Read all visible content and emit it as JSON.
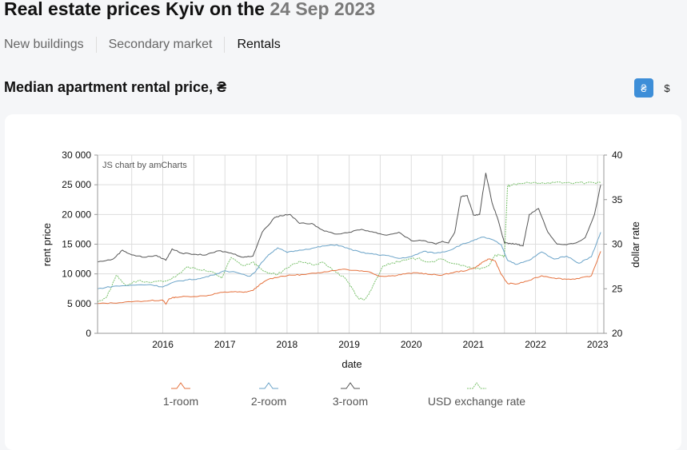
{
  "header": {
    "title_prefix": "Real estate prices Kyiv on the",
    "title_date": "24 Sep 2023"
  },
  "tabs": [
    {
      "label": "New buildings",
      "active": false
    },
    {
      "label": "Secondary market",
      "active": false
    },
    {
      "label": "Rentals",
      "active": true
    }
  ],
  "section": {
    "title": "Median apartment rental price, ₴"
  },
  "currency_toggle": {
    "uah_label": "₴",
    "usd_label": "$",
    "selected": "uah"
  },
  "colors": {
    "one_room": "#e5723e",
    "two_room": "#6aa3c8",
    "three_room": "#555555",
    "usd_rate": "#7cc26e",
    "grid": "#dddddd",
    "accent": "#3d8ed8"
  },
  "chart_data": {
    "type": "line",
    "watermark": "JS chart by amCharts",
    "xlabel": "date",
    "ylabel": "rent price",
    "y2label": "dollar rate",
    "xlim": [
      2015.45,
      2023.6
    ],
    "ylim": [
      0,
      30000
    ],
    "y2lim": [
      20,
      40
    ],
    "x_ticks": [
      2016,
      2017,
      2018,
      2019,
      2020,
      2021,
      2022,
      2023
    ],
    "y_ticks": [
      0,
      5000,
      10000,
      15000,
      20000,
      25000,
      30000
    ],
    "y_tick_labels": [
      "0",
      "5 000",
      "10 000",
      "15 000",
      "20 000",
      "25 000",
      "30 000"
    ],
    "y2_ticks": [
      20,
      25,
      30,
      35,
      40
    ],
    "grid": true,
    "legend_position": "bottom",
    "series": [
      {
        "name": "1-room",
        "axis": "left",
        "x": [
          2015.45,
          2015.7,
          2016.0,
          2016.3,
          2016.5,
          2016.55,
          2016.6,
          2016.7,
          2016.9,
          2017.2,
          2017.4,
          2017.6,
          2017.8,
          2017.95,
          2018.05,
          2018.2,
          2018.4,
          2018.6,
          2018.8,
          2019.0,
          2019.2,
          2019.4,
          2019.6,
          2019.8,
          2020.0,
          2020.2,
          2020.4,
          2020.6,
          2020.8,
          2021.0,
          2021.2,
          2021.4,
          2021.55,
          2021.65,
          2021.75,
          2021.85,
          2021.95,
          2022.05,
          2022.2,
          2022.4,
          2022.6,
          2022.8,
          2023.0,
          2023.2,
          2023.4,
          2023.55
        ],
        "values": [
          5000,
          5100,
          5300,
          5500,
          5600,
          4900,
          5800,
          6100,
          6200,
          6300,
          6800,
          7000,
          6900,
          7200,
          8100,
          9100,
          9600,
          9800,
          9900,
          10200,
          10500,
          10800,
          10600,
          10400,
          9600,
          9700,
          10000,
          10200,
          9900,
          9800,
          10300,
          10600,
          11200,
          12000,
          12500,
          12200,
          9900,
          8400,
          8300,
          8900,
          9700,
          9300,
          9100,
          9200,
          9700,
          13800
        ]
      },
      {
        "name": "2-room",
        "axis": "left",
        "x": [
          2015.45,
          2015.7,
          2016.0,
          2016.3,
          2016.5,
          2016.7,
          2016.9,
          2017.1,
          2017.3,
          2017.5,
          2017.7,
          2017.9,
          2018.0,
          2018.1,
          2018.2,
          2018.35,
          2018.5,
          2018.7,
          2018.9,
          2019.1,
          2019.3,
          2019.5,
          2019.7,
          2019.9,
          2020.1,
          2020.3,
          2020.5,
          2020.7,
          2020.9,
          2021.1,
          2021.3,
          2021.5,
          2021.65,
          2021.8,
          2021.95,
          2022.05,
          2022.2,
          2022.4,
          2022.6,
          2022.8,
          2023.0,
          2023.2,
          2023.4,
          2023.55
        ],
        "values": [
          7500,
          7900,
          8100,
          8200,
          7800,
          8700,
          9000,
          9200,
          9800,
          10500,
          10200,
          9600,
          10500,
          12000,
          13200,
          14400,
          13600,
          14000,
          14300,
          14700,
          14900,
          14200,
          13600,
          13300,
          13100,
          12600,
          12900,
          13800,
          13500,
          13900,
          14900,
          15600,
          16200,
          15800,
          14900,
          12300,
          11600,
          12300,
          13700,
          12500,
          13000,
          11800,
          12900,
          17000
        ]
      },
      {
        "name": "3-room",
        "axis": "left",
        "x": [
          2015.45,
          2015.7,
          2015.85,
          2016.0,
          2016.2,
          2016.4,
          2016.55,
          2016.65,
          2016.8,
          2017.0,
          2017.2,
          2017.4,
          2017.6,
          2017.8,
          2017.95,
          2018.1,
          2018.3,
          2018.4,
          2018.55,
          2018.7,
          2018.9,
          2019.1,
          2019.3,
          2019.5,
          2019.7,
          2019.9,
          2020.1,
          2020.3,
          2020.5,
          2020.7,
          2020.9,
          2021.0,
          2021.1,
          2021.2,
          2021.3,
          2021.4,
          2021.5,
          2021.6,
          2021.7,
          2021.8,
          2021.9,
          2022.0,
          2022.1,
          2022.2,
          2022.3,
          2022.4,
          2022.55,
          2022.7,
          2022.85,
          2023.0,
          2023.15,
          2023.3,
          2023.45,
          2023.55
        ],
        "values": [
          12000,
          12500,
          14000,
          13200,
          12800,
          13100,
          12300,
          14200,
          13500,
          13300,
          13200,
          13900,
          13500,
          12800,
          13000,
          17000,
          19500,
          19800,
          20000,
          18500,
          18500,
          17200,
          16700,
          17000,
          17500,
          17000,
          16500,
          17000,
          15600,
          15600,
          15000,
          15500,
          15200,
          17000,
          23000,
          23200,
          19900,
          20000,
          27000,
          22000,
          19000,
          15200,
          15100,
          15000,
          14700,
          20000,
          21000,
          17000,
          15000,
          14900,
          15200,
          16100,
          20000,
          25000
        ]
      },
      {
        "name": "USD exchange rate",
        "axis": "right",
        "x": [
          2015.45,
          2015.6,
          2015.75,
          2015.9,
          2016.1,
          2016.3,
          2016.5,
          2016.7,
          2016.9,
          2017.1,
          2017.3,
          2017.45,
          2017.6,
          2017.8,
          2017.95,
          2018.05,
          2018.2,
          2018.35,
          2018.5,
          2018.7,
          2018.9,
          2019.1,
          2019.3,
          2019.45,
          2019.55,
          2019.65,
          2019.75,
          2019.85,
          2019.95,
          2020.05,
          2020.2,
          2020.4,
          2020.6,
          2020.8,
          2021.0,
          2021.2,
          2021.4,
          2021.6,
          2021.75,
          2021.85,
          2021.95,
          2022.0,
          2022.05,
          2022.1,
          2022.25,
          2022.45,
          2022.6,
          2022.8,
          2023.0,
          2023.2,
          2023.45,
          2023.55
        ],
        "values": [
          23.5,
          24.1,
          26.5,
          25.4,
          25.9,
          25.7,
          25.8,
          26.3,
          27.5,
          27.1,
          26.9,
          26.2,
          28.5,
          27.6,
          28.0,
          27.4,
          26.7,
          26.6,
          27.3,
          28.1,
          27.7,
          27.9,
          26.8,
          26.1,
          25.0,
          23.9,
          23.8,
          24.8,
          26.2,
          27.6,
          27.9,
          28.2,
          28.4,
          28.0,
          28.3,
          27.8,
          27.4,
          27.2,
          27.6,
          28.8,
          28.7,
          28.6,
          36.5,
          36.6,
          36.8,
          36.9,
          36.9,
          36.9,
          36.9,
          36.9,
          36.9,
          36.9
        ]
      }
    ]
  }
}
